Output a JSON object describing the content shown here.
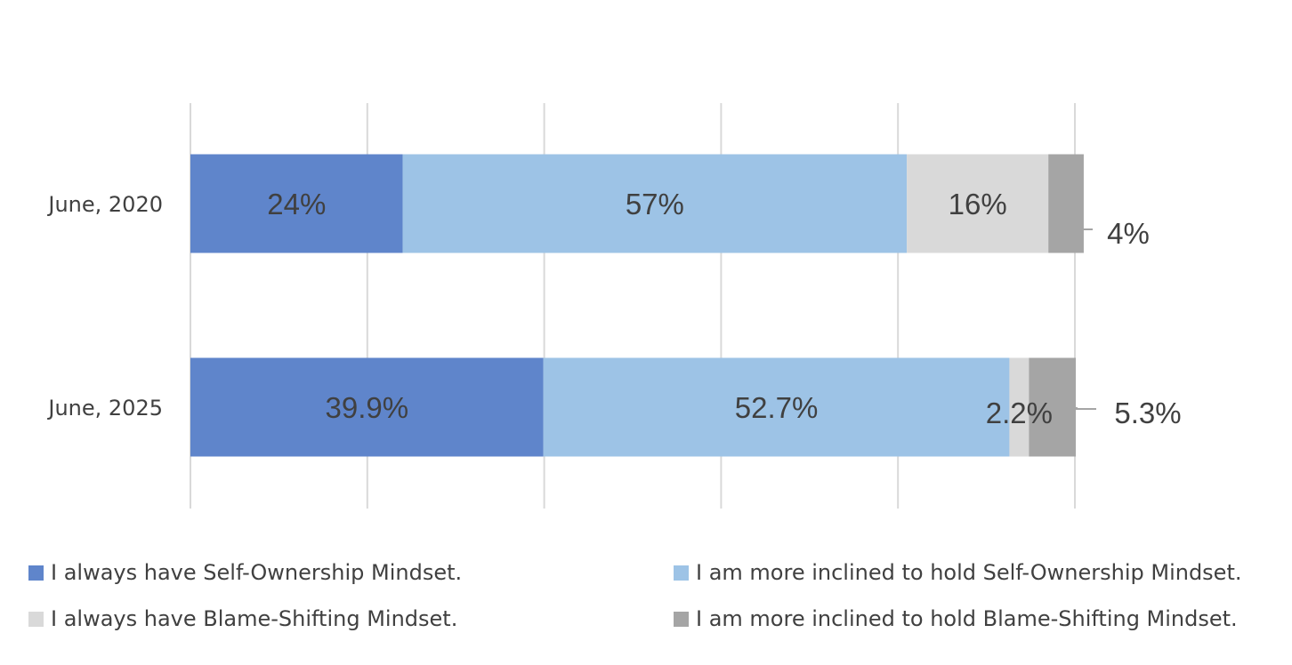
{
  "chart_data": {
    "type": "bar",
    "orientation": "horizontal",
    "stacked": true,
    "title": "",
    "xlabel": "",
    "ylabel": "",
    "xlim": [
      0,
      100
    ],
    "grid": true,
    "legend_position": "bottom",
    "categories": [
      "June, 2020",
      "June, 2025"
    ],
    "series": [
      {
        "name": "I always have Self-Ownership Mindset.",
        "values": [
          24,
          39.9
        ],
        "labels": [
          "24%",
          "39.9%"
        ],
        "color": "#5f85cb"
      },
      {
        "name": "I am more inclined to hold Self-Ownership Mindset.",
        "values": [
          57,
          52.7
        ],
        "labels": [
          "57%",
          "52.7%"
        ],
        "color": "#9dc3e6"
      },
      {
        "name": "I always have Blame-Shifting Mindset.",
        "values": [
          16,
          2.2
        ],
        "labels": [
          "16%",
          "2.2%"
        ],
        "color": "#d9d9d9"
      },
      {
        "name": "I am more inclined to hold Blame-Shifting Mindset.",
        "values": [
          4,
          5.3
        ],
        "labels": [
          "4%",
          "5.3%"
        ],
        "color": "#a5a5a5"
      }
    ]
  }
}
